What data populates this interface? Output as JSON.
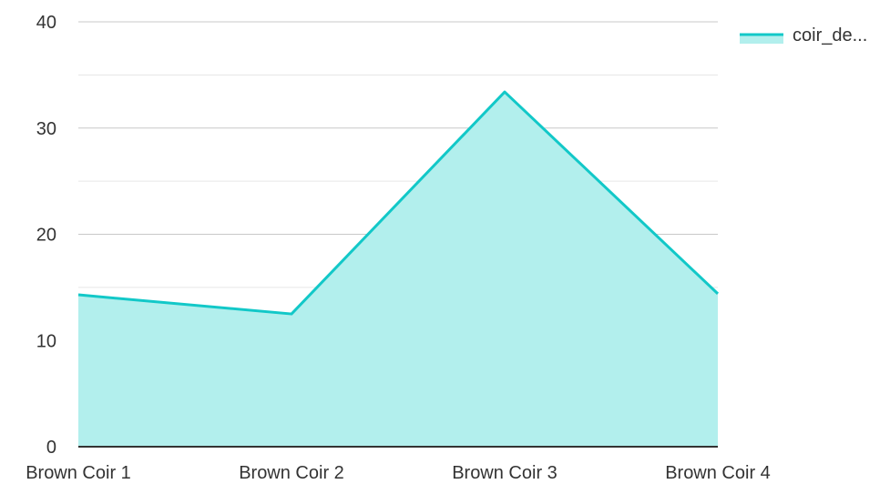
{
  "chart_data": {
    "type": "area",
    "categories": [
      "Brown Coir 1",
      "Brown Coir 2",
      "Brown Coir 3",
      "Brown Coir 4"
    ],
    "series": [
      {
        "name": "coir_de...",
        "values": [
          14.3,
          12.5,
          33.4,
          14.4
        ]
      }
    ],
    "ylim": [
      0,
      40
    ],
    "yticks": [
      "0",
      "10",
      "20",
      "30",
      "40"
    ],
    "grid": true,
    "legend": "top-right",
    "colors": {
      "line": "#12c8c8",
      "fill": "#b2efed",
      "grid": "#c8c8c8",
      "minor_grid": "#e6e6e6",
      "axis": "#333333"
    }
  }
}
